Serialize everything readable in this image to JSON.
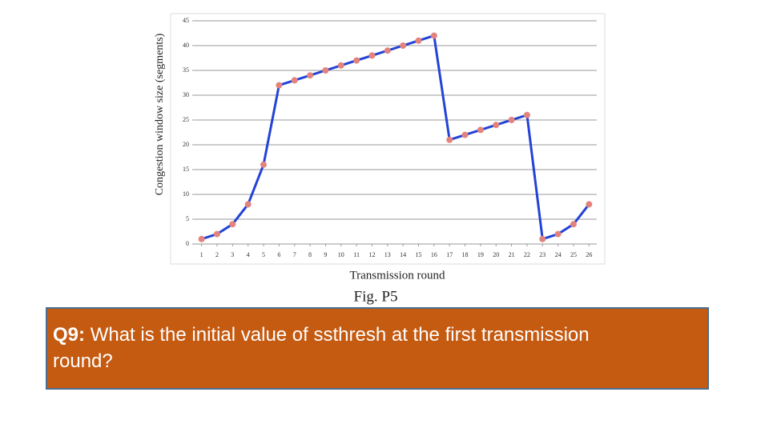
{
  "chart_data": {
    "type": "line",
    "x_label": "Transmission round",
    "y_label": "Congestion window size (segments)",
    "caption": "Fig. P5",
    "x": [
      1,
      2,
      3,
      4,
      5,
      6,
      7,
      8,
      9,
      10,
      11,
      12,
      13,
      14,
      15,
      16,
      17,
      18,
      19,
      20,
      21,
      22,
      23,
      24,
      25,
      26
    ],
    "series": [
      {
        "color": "#2343d6",
        "marker_color": "#e2837e",
        "values": [
          1,
          2,
          4,
          8,
          16,
          32,
          33,
          34,
          35,
          36,
          37,
          38,
          39,
          40,
          41,
          42,
          21,
          22,
          23,
          24,
          25,
          26,
          1,
          2,
          4,
          8
        ]
      }
    ],
    "xlim": [
      0.4,
      26.5
    ],
    "xticks": [
      1,
      2,
      3,
      4,
      5,
      6,
      7,
      8,
      9,
      10,
      11,
      12,
      13,
      14,
      15,
      16,
      17,
      18,
      19,
      20,
      21,
      22,
      23,
      24,
      25,
      26
    ],
    "ylim": [
      0,
      45
    ],
    "yticks": [
      0,
      5,
      10,
      15,
      20,
      25,
      30,
      35,
      40,
      45
    ],
    "grid": true
  },
  "question": {
    "label": "Q9:",
    "text": "What is the initial value of ssthresh at the first transmission round?"
  }
}
